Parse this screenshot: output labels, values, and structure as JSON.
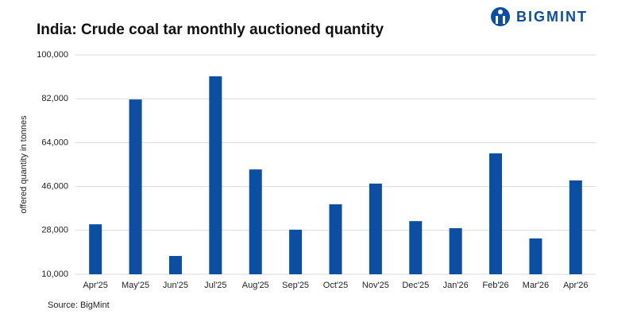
{
  "brand": "BIGMINT",
  "chart_data": {
    "type": "bar",
    "title": "India: Crude coal tar monthly auctioned quantity",
    "y_label": "offered quantity in tonnes",
    "source": "Source: BigMint",
    "categories": [
      "Apr'25",
      "May'25",
      "Jun'25",
      "Jul'25",
      "Aug'25",
      "Sep'25",
      "Oct'25",
      "Nov'25",
      "Dec'25",
      "Jan'26",
      "Feb'26",
      "Mar'26",
      "Apr'26"
    ],
    "values": [
      30500,
      81700,
      17500,
      91200,
      53000,
      28300,
      38700,
      47200,
      31800,
      28900,
      59600,
      24700,
      48500
    ],
    "color": "#0b4ea2",
    "ylim": [
      10000,
      100000
    ],
    "yticks": [
      {
        "value": 10000,
        "label": "10,000"
      },
      {
        "value": 28000,
        "label": "28,000"
      },
      {
        "value": 46000,
        "label": "46,000"
      },
      {
        "value": 64000,
        "label": "64,000"
      },
      {
        "value": 82000,
        "label": "82,000"
      },
      {
        "value": 100000,
        "label": "100,000"
      }
    ],
    "grid": true
  }
}
